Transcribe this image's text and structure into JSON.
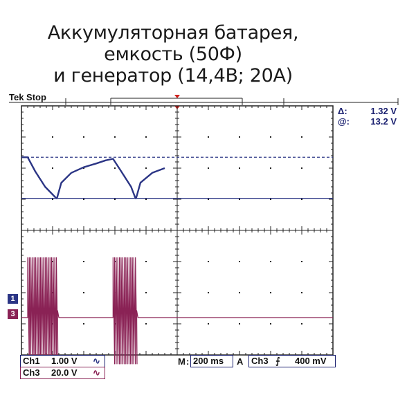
{
  "title_lines": [
    "Аккумуляторная батарея,",
    "емкость (50Ф)",
    "и генератор (14,4В; 20А)"
  ],
  "status": "Tek Stop",
  "cursor": {
    "delta_label": "Δ:",
    "delta_value": "1.32 V",
    "at_label": "@:",
    "at_value": "13.2 V"
  },
  "channels": {
    "ch1_label": "Ch1",
    "ch1_scale": "1.00 V",
    "ch1_coupling": "∿",
    "ch3_label": "Ch3",
    "ch3_scale": "20.0 V",
    "ch3_coupling": "∿",
    "ch1_marker": "1",
    "ch3_marker": "3"
  },
  "timebase": {
    "label": "M",
    "value": "200 ms"
  },
  "trigger": {
    "mode": "A",
    "source": "Ch3",
    "slope": "⨍",
    "level": "400 mV"
  },
  "colors": {
    "ch1": "#2b3585",
    "ch3": "#8a2255",
    "grid": "#222222",
    "cursor": "#2b3585"
  },
  "chart_data": {
    "type": "line",
    "grid": true,
    "x_divisions": 10,
    "y_divisions": 8,
    "series": [
      {
        "channel": "Ch1",
        "x": [
          0.0,
          0.2,
          0.44,
          0.76,
          1.12,
          1.14,
          1.28,
          1.6,
          2.0,
          2.4,
          2.7,
          2.94,
          3.2,
          3.52,
          3.66,
          3.68,
          3.82,
          4.2,
          4.6
        ],
        "values": [
          0.0,
          0.0,
          -0.45,
          -0.95,
          -1.32,
          -1.32,
          -0.82,
          -0.5,
          -0.32,
          -0.2,
          -0.1,
          -0.05,
          -0.45,
          -0.95,
          -1.32,
          -1.32,
          -0.82,
          -0.5,
          -0.35
        ]
      },
      {
        "channel": "Ch3",
        "bursts": [
          {
            "start": 0.2,
            "end": 1.12,
            "amplitude": 35
          },
          {
            "start": 2.94,
            "end": 3.66,
            "amplitude": 35
          }
        ],
        "baseline": 0
      }
    ]
  }
}
